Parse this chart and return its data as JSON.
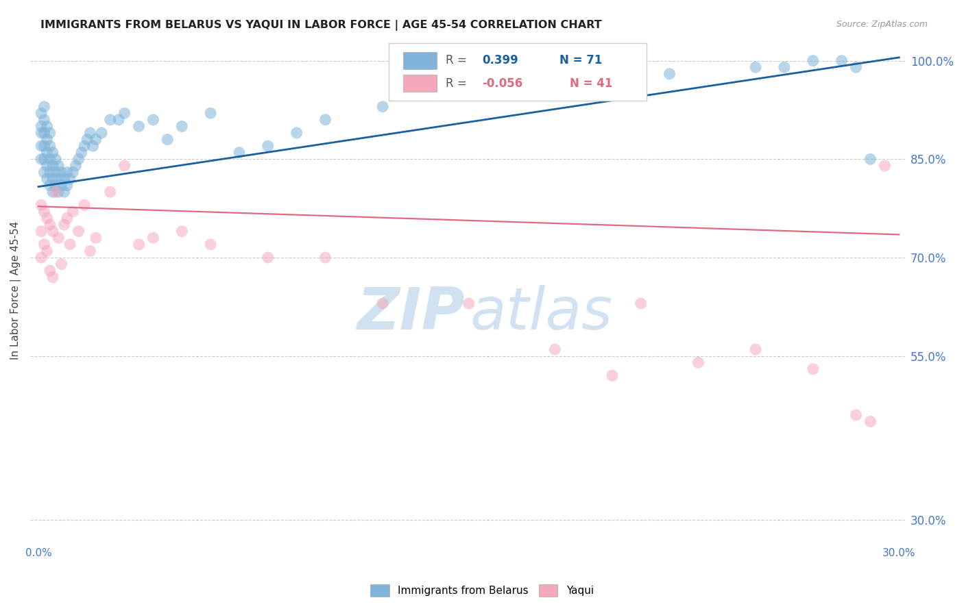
{
  "title": "IMMIGRANTS FROM BELARUS VS YAQUI IN LABOR FORCE | AGE 45-54 CORRELATION CHART",
  "source": "Source: ZipAtlas.com",
  "ylabel": "In Labor Force | Age 45-54",
  "blue_color": "#7fb3d9",
  "pink_color": "#f4a8bc",
  "blue_line_color": "#1a5fa0",
  "pink_line_color": "#e06880",
  "legend_R_blue": "0.399",
  "legend_N_blue": "71",
  "legend_R_pink": "-0.056",
  "legend_N_pink": "41",
  "axis_label_color": "#4477cc",
  "title_color": "#222222",
  "source_color": "#999999",
  "grid_color": "#cccccc",
  "watermark_zip_color": "#c8ddf0",
  "watermark_atlas_color": "#c8ddf0",
  "background_color": "#ffffff",
  "xlim_min": -0.003,
  "xlim_max": 0.302,
  "ylim_min": 0.265,
  "ylim_max": 1.035,
  "xtick_positions": [
    0.0,
    0.05,
    0.1,
    0.15,
    0.2,
    0.25,
    0.3
  ],
  "xtick_labels": [
    "0.0%",
    "",
    "",
    "",
    "",
    "",
    "30.0%"
  ],
  "ytick_positions": [
    0.3,
    0.55,
    0.7,
    0.85,
    1.0
  ],
  "ytick_labels_right": [
    "30.0%",
    "55.0%",
    "70.0%",
    "85.0%",
    "100.0%"
  ],
  "blue_trend_x": [
    0.0,
    0.3
  ],
  "blue_trend_y": [
    0.808,
    1.005
  ],
  "pink_trend_x": [
    0.0,
    0.3
  ],
  "pink_trend_y": [
    0.778,
    0.735
  ],
  "blue_x": [
    0.001,
    0.001,
    0.001,
    0.001,
    0.001,
    0.002,
    0.002,
    0.002,
    0.002,
    0.002,
    0.002,
    0.003,
    0.003,
    0.003,
    0.003,
    0.003,
    0.004,
    0.004,
    0.004,
    0.004,
    0.004,
    0.005,
    0.005,
    0.005,
    0.005,
    0.006,
    0.006,
    0.006,
    0.007,
    0.007,
    0.007,
    0.008,
    0.008,
    0.009,
    0.009,
    0.01,
    0.01,
    0.011,
    0.012,
    0.013,
    0.014,
    0.015,
    0.016,
    0.017,
    0.018,
    0.019,
    0.02,
    0.022,
    0.025,
    0.028,
    0.03,
    0.035,
    0.04,
    0.045,
    0.05,
    0.06,
    0.07,
    0.08,
    0.09,
    0.1,
    0.12,
    0.15,
    0.18,
    0.2,
    0.22,
    0.25,
    0.26,
    0.27,
    0.28,
    0.285,
    0.29
  ],
  "blue_y": [
    0.85,
    0.87,
    0.89,
    0.9,
    0.92,
    0.83,
    0.85,
    0.87,
    0.89,
    0.91,
    0.93,
    0.82,
    0.84,
    0.86,
    0.88,
    0.9,
    0.81,
    0.83,
    0.85,
    0.87,
    0.89,
    0.8,
    0.82,
    0.84,
    0.86,
    0.81,
    0.83,
    0.85,
    0.8,
    0.82,
    0.84,
    0.81,
    0.83,
    0.8,
    0.82,
    0.81,
    0.83,
    0.82,
    0.83,
    0.84,
    0.85,
    0.86,
    0.87,
    0.88,
    0.89,
    0.87,
    0.88,
    0.89,
    0.91,
    0.91,
    0.92,
    0.9,
    0.91,
    0.88,
    0.9,
    0.92,
    0.86,
    0.87,
    0.89,
    0.91,
    0.93,
    0.95,
    0.97,
    0.96,
    0.98,
    0.99,
    0.99,
    1.0,
    1.0,
    0.99,
    0.85
  ],
  "pink_x": [
    0.001,
    0.001,
    0.001,
    0.002,
    0.002,
    0.003,
    0.003,
    0.004,
    0.004,
    0.005,
    0.005,
    0.006,
    0.007,
    0.008,
    0.009,
    0.01,
    0.011,
    0.012,
    0.014,
    0.016,
    0.018,
    0.02,
    0.025,
    0.03,
    0.035,
    0.04,
    0.05,
    0.06,
    0.08,
    0.1,
    0.12,
    0.15,
    0.18,
    0.2,
    0.21,
    0.23,
    0.25,
    0.27,
    0.285,
    0.29,
    0.295
  ],
  "pink_y": [
    0.78,
    0.74,
    0.7,
    0.77,
    0.72,
    0.76,
    0.71,
    0.75,
    0.68,
    0.74,
    0.67,
    0.8,
    0.73,
    0.69,
    0.75,
    0.76,
    0.72,
    0.77,
    0.74,
    0.78,
    0.71,
    0.73,
    0.8,
    0.84,
    0.72,
    0.73,
    0.74,
    0.72,
    0.7,
    0.7,
    0.63,
    0.63,
    0.56,
    0.52,
    0.63,
    0.54,
    0.56,
    0.53,
    0.46,
    0.45,
    0.84
  ]
}
